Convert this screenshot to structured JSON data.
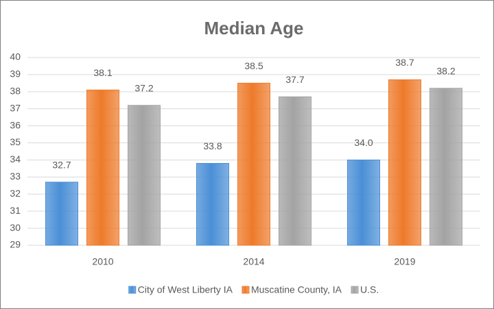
{
  "chart_data": {
    "type": "bar",
    "title": "Median Age",
    "categories": [
      "2010",
      "2014",
      "2019"
    ],
    "series": [
      {
        "name": "City of West Liberty IA",
        "color": "#4a8fd6",
        "values": [
          32.7,
          33.8,
          34.0
        ],
        "value_labels": [
          "32.7",
          "33.8",
          "34.0"
        ]
      },
      {
        "name": "Muscatine County, IA",
        "color": "#ee7a2a",
        "values": [
          38.1,
          38.5,
          38.7
        ],
        "value_labels": [
          "38.1",
          "38.5",
          "38.7"
        ]
      },
      {
        "name": "U.S.",
        "color": "#a3a3a3",
        "values": [
          37.2,
          37.7,
          38.2
        ],
        "value_labels": [
          "37.2",
          "37.7",
          "38.2"
        ]
      }
    ],
    "ylim": [
      29,
      40
    ],
    "yticks": [
      29,
      30,
      31,
      32,
      33,
      34,
      35,
      36,
      37,
      38,
      39,
      40
    ],
    "grid": true,
    "legend": "bottom"
  }
}
